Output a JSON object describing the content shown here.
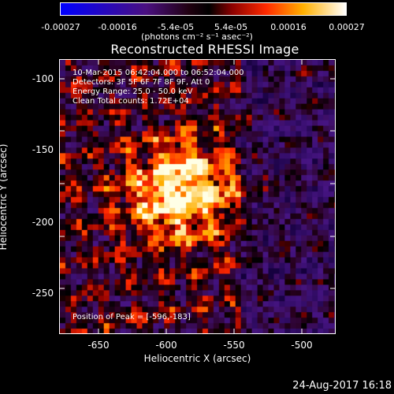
{
  "title": "Reconstructed RHESSI Image",
  "colorbar": {
    "ticks": [
      "-0.00027",
      "-0.00016",
      "-5.4e-05",
      "5.4e-05",
      "0.00016",
      "0.00027"
    ],
    "units": "(photons cm⁻² s⁻¹ asec⁻²)"
  },
  "info": {
    "time_range": "10-Mar-2015 06:42:04.000 to 06:52:04.000",
    "detectors": "Detectors: 3F 5F 6F 7F 8F 9F, Att 0",
    "energy": "Energy Range: 25.0 - 50.0 keV",
    "clean": "Clean     Total counts: 1.72E+04",
    "peak": "Position of Peak = [-596,-183]"
  },
  "axes": {
    "xlabel": "Heliocentric X (arcsec)",
    "ylabel": "Heliocentric Y (arcsec)",
    "xticks": [
      "-650",
      "-600",
      "-550",
      "-500"
    ],
    "yticks": [
      "-100",
      "-150",
      "-200",
      "-250"
    ]
  },
  "footer": {
    "date": "24-Aug-2017 16:18"
  }
}
